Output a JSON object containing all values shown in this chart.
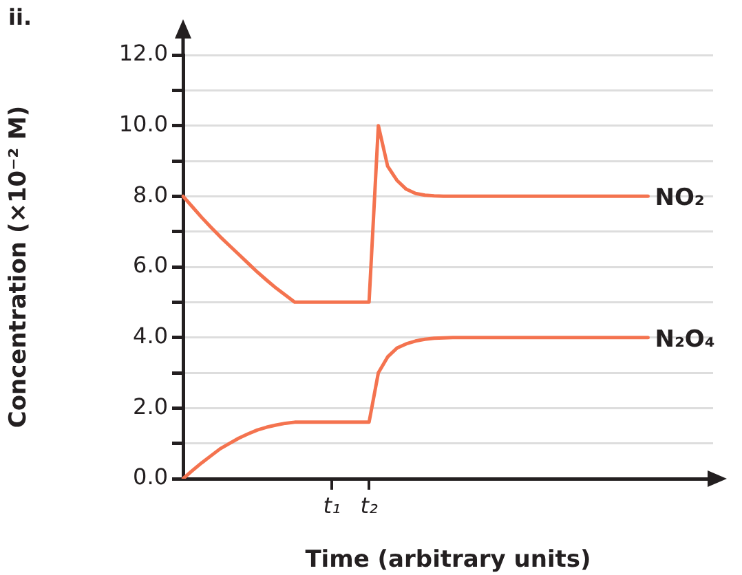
{
  "chart_data": {
    "type": "line",
    "title": "ii.",
    "xlabel": "Time (arbitrary units)",
    "ylabel": "Concentration (×10⁻² M)",
    "categories": [
      null,
      null,
      null,
      null,
      null,
      null,
      null,
      null,
      null,
      null,
      null,
      null,
      null,
      null,
      null,
      null,
      "t₁",
      null,
      null,
      null,
      "t₂",
      null,
      null,
      null,
      null,
      null,
      null,
      null,
      null,
      null,
      null,
      null,
      null,
      null,
      null,
      null,
      null,
      null,
      null,
      null,
      null,
      null,
      null,
      null,
      null,
      null,
      null,
      null,
      null,
      null,
      null,
      null,
      null,
      null,
      null,
      null,
      null,
      null
    ],
    "ylim": [
      0,
      12
    ],
    "yticks": [
      {
        "value": 0,
        "label": "0.0"
      },
      {
        "value": 1,
        "label": null
      },
      {
        "value": 2,
        "label": "2.0"
      },
      {
        "value": 3,
        "label": null
      },
      {
        "value": 4,
        "label": "4.0"
      },
      {
        "value": 5,
        "label": null
      },
      {
        "value": 6,
        "label": "6.0"
      },
      {
        "value": 7,
        "label": null
      },
      {
        "value": 8,
        "label": "8.0"
      },
      {
        "value": 9,
        "label": null
      },
      {
        "value": 10,
        "label": "10.0"
      },
      {
        "value": 11,
        "label": null
      },
      {
        "value": 12,
        "label": "12.0"
      }
    ],
    "grid": "y",
    "legend": false,
    "marker": "none",
    "line_style": "solid",
    "series": [
      {
        "name": "NO₂",
        "color": "#f4734f",
        "values": [
          8,
          7.7,
          7.4,
          7.12,
          6.85,
          6.6,
          6.35,
          6.1,
          5.85,
          5.62,
          5.4,
          5.2,
          5,
          5,
          5,
          5,
          5,
          5,
          5,
          5,
          5,
          10,
          8.85,
          8.45,
          8.2,
          8.08,
          8.03,
          8.01,
          8,
          8,
          8,
          8,
          8,
          8,
          8,
          8,
          8,
          8,
          8,
          8,
          8,
          8,
          8,
          8,
          8,
          8,
          8,
          8,
          8,
          8,
          8,
          null,
          null,
          null,
          null,
          null,
          null,
          null
        ]
      },
      {
        "name": "N₂O₄",
        "color": "#f4734f",
        "values": [
          0,
          0.23,
          0.45,
          0.65,
          0.85,
          1,
          1.15,
          1.27,
          1.38,
          1.46,
          1.52,
          1.57,
          1.6,
          1.6,
          1.6,
          1.6,
          1.6,
          1.6,
          1.6,
          1.6,
          1.6,
          3,
          3.45,
          3.7,
          3.82,
          3.9,
          3.95,
          3.98,
          3.99,
          4,
          4,
          4,
          4,
          4,
          4,
          4,
          4,
          4,
          4,
          4,
          4,
          4,
          4,
          4,
          4,
          4,
          4,
          4,
          4,
          4,
          4,
          null,
          null,
          null,
          null,
          null,
          null,
          null
        ]
      }
    ]
  }
}
